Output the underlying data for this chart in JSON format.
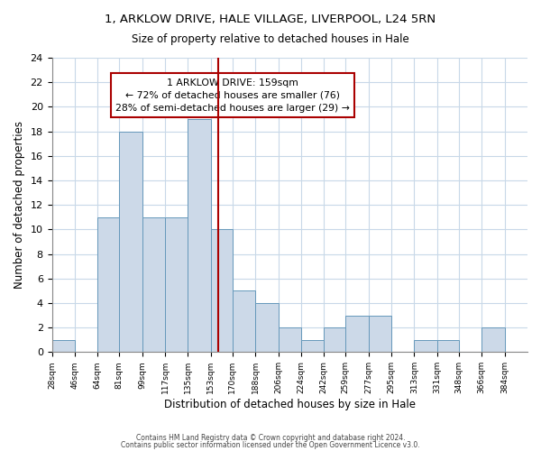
{
  "title": "1, ARKLOW DRIVE, HALE VILLAGE, LIVERPOOL, L24 5RN",
  "subtitle": "Size of property relative to detached houses in Hale",
  "xlabel": "Distribution of detached houses by size in Hale",
  "ylabel": "Number of detached properties",
  "bar_color": "#ccd9e8",
  "bar_edge_color": "#6699bb",
  "bin_labels": [
    "28sqm",
    "46sqm",
    "64sqm",
    "81sqm",
    "99sqm",
    "117sqm",
    "135sqm",
    "153sqm",
    "170sqm",
    "188sqm",
    "206sqm",
    "224sqm",
    "242sqm",
    "259sqm",
    "277sqm",
    "295sqm",
    "313sqm",
    "331sqm",
    "348sqm",
    "366sqm",
    "384sqm"
  ],
  "bin_lefts": [
    28,
    46,
    64,
    81,
    99,
    117,
    135,
    153,
    170,
    188,
    206,
    224,
    242,
    259,
    277,
    295,
    313,
    331,
    348,
    366
  ],
  "bin_widths": [
    18,
    18,
    17,
    18,
    18,
    18,
    18,
    17,
    18,
    18,
    18,
    18,
    17,
    18,
    18,
    18,
    18,
    17,
    18,
    18
  ],
  "counts": [
    1,
    0,
    11,
    18,
    11,
    11,
    19,
    10,
    5,
    4,
    2,
    1,
    2,
    3,
    3,
    0,
    1,
    1,
    0,
    2
  ],
  "ylim": [
    0,
    24
  ],
  "yticks": [
    0,
    2,
    4,
    6,
    8,
    10,
    12,
    14,
    16,
    18,
    20,
    22,
    24
  ],
  "property_size": 159,
  "annotation_title": "1 ARKLOW DRIVE: 159sqm",
  "annotation_line1": "← 72% of detached houses are smaller (76)",
  "annotation_line2": "28% of semi-detached houses are larger (29) →",
  "vline_color": "#aa0000",
  "annotation_box_edge_color": "#aa0000",
  "footnote1": "Contains HM Land Registry data © Crown copyright and database right 2024.",
  "footnote2": "Contains public sector information licensed under the Open Government Licence v3.0.",
  "background_color": "#ffffff",
  "grid_color": "#c8d8e8",
  "xlim_left": 28,
  "xlim_right": 402
}
